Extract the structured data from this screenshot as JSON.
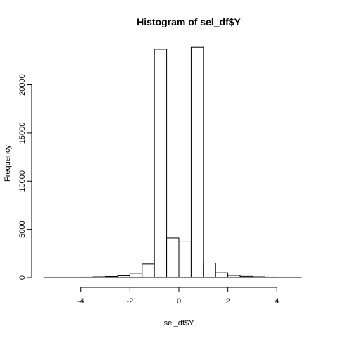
{
  "chart_data": {
    "type": "bar",
    "title": "Histogram of sel_df$Y",
    "xlabel": "sel_df$Y",
    "ylabel": "Frequency",
    "xlim": [
      -5.6,
      5.6
    ],
    "ylim": [
      0,
      24500
    ],
    "grid": false,
    "x_ticks": [
      -4,
      -2,
      0,
      2,
      4
    ],
    "x_tick_labels": [
      "-4",
      "-2",
      "0",
      "2",
      "4"
    ],
    "y_ticks": [
      0,
      5000,
      10000,
      15000,
      20000
    ],
    "y_tick_labels": [
      "0",
      "5000",
      "10000",
      "15000",
      "20000"
    ],
    "bins": [
      {
        "x0": -5.5,
        "x1": -5.0,
        "count": 10
      },
      {
        "x0": -5.0,
        "x1": -4.5,
        "count": 15
      },
      {
        "x0": -4.5,
        "x1": -4.0,
        "count": 25
      },
      {
        "x0": -4.0,
        "x1": -3.5,
        "count": 40
      },
      {
        "x0": -3.5,
        "x1": -3.0,
        "count": 70
      },
      {
        "x0": -3.0,
        "x1": -2.5,
        "count": 110
      },
      {
        "x0": -2.5,
        "x1": -2.0,
        "count": 180
      },
      {
        "x0": -2.0,
        "x1": -1.5,
        "count": 450
      },
      {
        "x0": -1.5,
        "x1": -1.0,
        "count": 1400
      },
      {
        "x0": -1.0,
        "x1": -0.5,
        "count": 23700
      },
      {
        "x0": -0.5,
        "x1": 0.0,
        "count": 4100
      },
      {
        "x0": 0.0,
        "x1": 0.5,
        "count": 3700
      },
      {
        "x0": 0.5,
        "x1": 1.0,
        "count": 23900
      },
      {
        "x0": 1.0,
        "x1": 1.5,
        "count": 1500
      },
      {
        "x0": 1.5,
        "x1": 2.0,
        "count": 500
      },
      {
        "x0": 2.0,
        "x1": 2.5,
        "count": 220
      },
      {
        "x0": 2.5,
        "x1": 3.0,
        "count": 120
      },
      {
        "x0": 3.0,
        "x1": 3.5,
        "count": 70
      },
      {
        "x0": 3.5,
        "x1": 4.0,
        "count": 40
      },
      {
        "x0": 4.0,
        "x1": 4.5,
        "count": 25
      },
      {
        "x0": 4.5,
        "x1": 5.0,
        "count": 15
      }
    ]
  }
}
